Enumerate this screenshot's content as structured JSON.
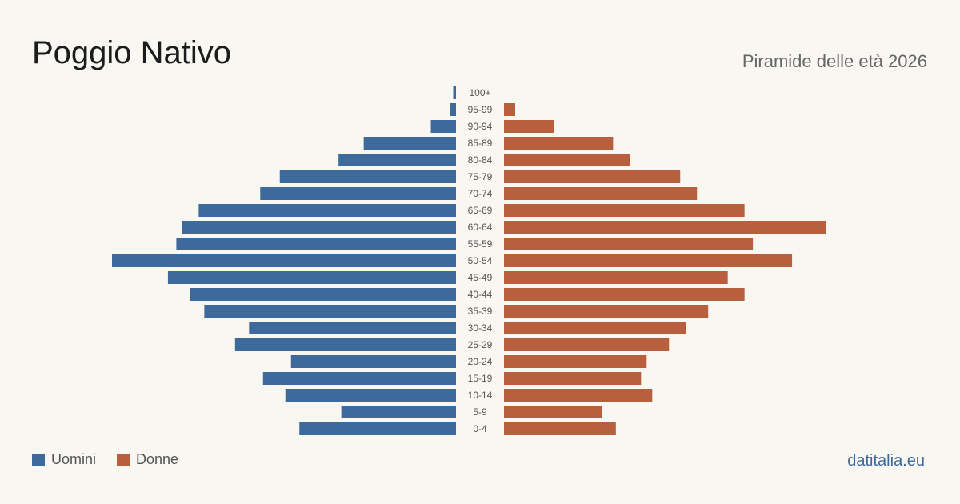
{
  "header": {
    "title": "Poggio Nativo",
    "subtitle": "Piramide delle età 2026"
  },
  "legend": {
    "men_label": "Uomini",
    "women_label": "Donne"
  },
  "footer": {
    "source": "datitalia.eu"
  },
  "colors": {
    "men": "#3d6a9a",
    "women": "#b85f3e",
    "background": "#f9f7f2"
  },
  "chart_data": {
    "type": "bar",
    "orientation": "horizontal-pyramid",
    "categories": [
      "100+",
      "95-99",
      "90-94",
      "85-89",
      "80-84",
      "75-79",
      "70-74",
      "65-69",
      "60-64",
      "55-59",
      "50-54",
      "45-49",
      "40-44",
      "35-39",
      "30-34",
      "25-29",
      "20-24",
      "15-19",
      "10-14",
      "5-9",
      "0-4"
    ],
    "series": [
      {
        "name": "Uomini",
        "side": "left",
        "values": [
          1,
          2,
          9,
          33,
          42,
          63,
          70,
          92,
          98,
          100,
          123,
          103,
          95,
          90,
          74,
          79,
          59,
          69,
          61,
          41,
          56
        ]
      },
      {
        "name": "Donne",
        "side": "right",
        "values": [
          0,
          4,
          18,
          39,
          45,
          63,
          69,
          86,
          115,
          89,
          103,
          80,
          86,
          73,
          65,
          59,
          51,
          49,
          53,
          35,
          40
        ]
      }
    ],
    "xlim": [
      0,
      123
    ],
    "grid": false,
    "legend_position": "bottom-left"
  }
}
